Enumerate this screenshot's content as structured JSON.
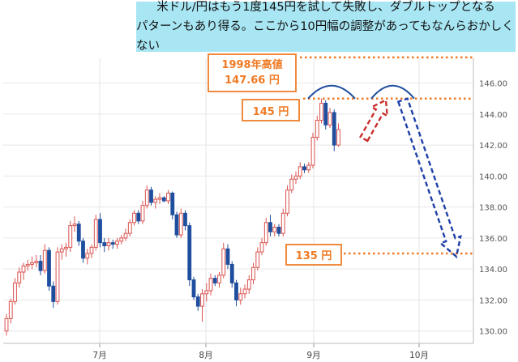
{
  "annotation": {
    "headline_line1": "米ドル/円はもう1度145円を試して失敗し、ダブルトップとなる",
    "headline_line2": "パターンもあり得る。ここから10円幅の調整があってもなんらおかしくない",
    "high_label_line1": "1998年高値",
    "high_label_line2": "147.66 円",
    "resistance_label": "145 円",
    "support_label": "135 円"
  },
  "colors": {
    "up_candle": "#d9534f",
    "down_candle": "#1f4e9e",
    "level_line": "#ef7a24",
    "double_top_arc": "#1f4e9e",
    "forecast_up_arrow": "#c9302c",
    "forecast_down_arrow": "#1f3fa8",
    "banner": "#a8e6f4"
  },
  "chart_data": {
    "type": "candlestick",
    "xlabel": "",
    "ylabel": "",
    "ylim": [
      129.2,
      147.6
    ],
    "y_ticks": [
      "130.00",
      "132.00",
      "134.00",
      "136.00",
      "138.00",
      "140.00",
      "142.00",
      "144.00",
      "146.00"
    ],
    "x_ticks": [
      "7月",
      "8月",
      "9月",
      "10月"
    ],
    "grid": true,
    "levels": [
      {
        "name": "1998年高値",
        "value": 147.66
      },
      {
        "name": "145円",
        "value": 145.0
      },
      {
        "name": "135円",
        "value": 135.0
      }
    ],
    "series": {
      "ohlc": [
        [
          130.0,
          131.1,
          129.7,
          130.8
        ],
        [
          130.8,
          132.1,
          130.5,
          131.9
        ],
        [
          131.9,
          133.4,
          131.7,
          133.1
        ],
        [
          133.1,
          134.1,
          132.8,
          133.8
        ],
        [
          133.8,
          134.4,
          133.3,
          134.2
        ],
        [
          134.2,
          134.6,
          133.9,
          134.3
        ],
        [
          134.3,
          134.8,
          134.0,
          134.4
        ],
        [
          134.4,
          134.9,
          134.1,
          134.5
        ],
        [
          134.5,
          134.9,
          133.6,
          133.9
        ],
        [
          133.9,
          135.6,
          133.7,
          135.2
        ],
        [
          135.2,
          135.4,
          132.6,
          132.9
        ],
        [
          132.9,
          133.2,
          131.5,
          131.9
        ],
        [
          131.9,
          135.4,
          131.7,
          135.1
        ],
        [
          135.1,
          135.6,
          134.6,
          135.3
        ],
        [
          135.3,
          135.7,
          134.8,
          135.4
        ],
        [
          135.4,
          137.1,
          135.1,
          136.8
        ],
        [
          136.8,
          137.4,
          136.4,
          136.9
        ],
        [
          136.9,
          137.1,
          135.5,
          135.8
        ],
        [
          135.8,
          136.0,
          134.4,
          134.7
        ],
        [
          134.7,
          135.3,
          134.3,
          135.0
        ],
        [
          135.0,
          135.6,
          134.7,
          135.4
        ],
        [
          135.4,
          137.5,
          135.2,
          137.2
        ],
        [
          137.2,
          137.6,
          135.4,
          135.7
        ],
        [
          135.7,
          136.0,
          135.1,
          135.5
        ],
        [
          135.5,
          136.0,
          135.2,
          135.7
        ],
        [
          135.7,
          135.9,
          135.3,
          135.6
        ],
        [
          135.6,
          136.0,
          135.3,
          135.8
        ],
        [
          135.8,
          136.2,
          135.6,
          136.0
        ],
        [
          136.0,
          136.6,
          135.8,
          136.3
        ],
        [
          136.3,
          137.2,
          136.1,
          137.0
        ],
        [
          137.0,
          137.8,
          136.8,
          137.6
        ],
        [
          137.6,
          137.8,
          136.9,
          137.1
        ],
        [
          137.1,
          138.4,
          136.9,
          138.1
        ],
        [
          138.1,
          139.4,
          137.9,
          139.1
        ],
        [
          139.1,
          139.3,
          138.1,
          138.3
        ],
        [
          138.3,
          138.7,
          137.9,
          138.5
        ],
        [
          138.5,
          138.9,
          138.2,
          138.6
        ],
        [
          138.6,
          138.7,
          138.3,
          138.4
        ],
        [
          138.4,
          139.1,
          138.2,
          138.9
        ],
        [
          138.9,
          139.0,
          137.2,
          137.5
        ],
        [
          137.5,
          137.7,
          136.0,
          136.2
        ],
        [
          136.2,
          137.9,
          136.0,
          137.6
        ],
        [
          137.6,
          137.8,
          136.5,
          136.8
        ],
        [
          136.8,
          137.0,
          132.9,
          133.3
        ],
        [
          133.3,
          133.5,
          132.0,
          132.2
        ],
        [
          132.2,
          132.4,
          131.3,
          131.6
        ],
        [
          131.6,
          132.7,
          130.6,
          132.4
        ],
        [
          132.4,
          133.1,
          131.9,
          132.6
        ],
        [
          132.6,
          133.7,
          132.3,
          133.4
        ],
        [
          133.4,
          133.6,
          132.9,
          133.1
        ],
        [
          133.1,
          133.8,
          132.8,
          133.6
        ],
        [
          133.6,
          135.7,
          133.4,
          135.3
        ],
        [
          135.3,
          135.6,
          134.0,
          134.3
        ],
        [
          134.3,
          134.5,
          132.8,
          133.1
        ],
        [
          133.1,
          133.3,
          131.6,
          132.0
        ],
        [
          132.0,
          132.8,
          131.7,
          132.4
        ],
        [
          132.4,
          133.0,
          132.1,
          132.7
        ],
        [
          132.7,
          133.6,
          132.4,
          133.3
        ],
        [
          133.3,
          134.4,
          133.0,
          134.1
        ],
        [
          134.1,
          135.4,
          133.9,
          135.1
        ],
        [
          135.1,
          136.0,
          134.9,
          135.7
        ],
        [
          135.7,
          137.3,
          135.5,
          137.0
        ],
        [
          137.0,
          137.5,
          136.1,
          136.4
        ],
        [
          136.4,
          136.9,
          136.1,
          136.7
        ],
        [
          136.7,
          136.9,
          136.1,
          136.3
        ],
        [
          136.3,
          137.9,
          136.1,
          137.6
        ],
        [
          137.6,
          139.4,
          137.4,
          139.1
        ],
        [
          139.1,
          140.1,
          138.9,
          139.8
        ],
        [
          139.8,
          140.3,
          139.5,
          140.0
        ],
        [
          140.0,
          140.9,
          139.8,
          140.6
        ],
        [
          140.6,
          140.8,
          140.2,
          140.4
        ],
        [
          140.4,
          140.9,
          140.2,
          140.7
        ],
        [
          140.7,
          142.8,
          140.5,
          142.5
        ],
        [
          142.5,
          143.9,
          142.3,
          143.6
        ],
        [
          143.6,
          145.0,
          143.4,
          144.7
        ],
        [
          144.7,
          144.9,
          143.0,
          143.3
        ],
        [
          143.3,
          144.4,
          143.1,
          144.1
        ],
        [
          144.1,
          144.3,
          141.6,
          142.0
        ],
        [
          142.0,
          143.4,
          141.9,
          143.0
        ]
      ],
      "forecast": [
        {
          "from": 142.4,
          "to": 144.9
        },
        {
          "from": 144.9,
          "to": 134.8
        }
      ]
    }
  }
}
